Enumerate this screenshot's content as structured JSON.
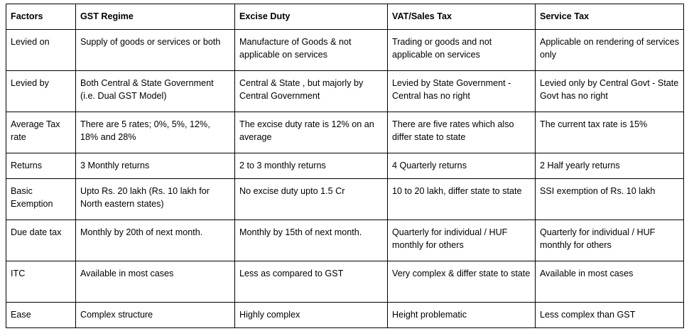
{
  "columns": [
    "Factors",
    "GST Regime",
    "Excise Duty",
    "VAT/Sales Tax",
    "Service Tax"
  ],
  "rows": [
    {
      "factor": "Levied on",
      "gst": "Supply of goods or services or both",
      "excise": "Manufacture of Goods & not applicable on services",
      "vat": "Trading or goods and not applicable on services",
      "service": "Applicable on rendering of services only"
    },
    {
      "factor": "Levied by",
      "gst": "Both Central & State Government (i.e. Dual GST Model)",
      "excise": "Central & State , but majorly by Central Government",
      "vat": "Levied by State Government - Central has no right",
      "service": "Levied only by Central Govt - State Govt has no right"
    },
    {
      "factor": "Average Tax rate",
      "gst": "There are 5 rates; 0%, 5%, 12%, 18% and 28%",
      "excise": "The excise duty rate is 12% on an average",
      "vat": "There are five rates which also differ state to state",
      "service": "The current tax rate is 15%"
    },
    {
      "factor": "Returns",
      "gst": "3 Monthly returns",
      "excise": "2 to 3 monthly returns",
      "vat": "4 Quarterly returns",
      "service": "2 Half yearly returns"
    },
    {
      "factor": "Basic Exemption",
      "gst": "Upto Rs. 20 lakh (Rs. 10 lakh for North eastern states)",
      "excise": "No excise duty upto 1.5 Cr",
      "vat": "10 to 20 lakh, differ state to state",
      "service": "SSI exemption of Rs. 10 lakh"
    },
    {
      "factor": "Due date tax",
      "gst": "Monthly by 20th of next month.",
      "excise": "Monthly by 15th of next month.",
      "vat": "Quarterly for individual / HUF monthly for others",
      "service": "Quarterly for individual / HUF monthly for others"
    },
    {
      "factor": "ITC",
      "gst": "Available in most cases",
      "excise": "Less as compared to GST",
      "vat": "Very complex & differ state to state",
      "service": "Available in most cases"
    },
    {
      "factor": "Ease",
      "gst": "Complex structure",
      "excise": "Highly complex",
      "vat": "Height problematic",
      "service": "Less complex than GST"
    }
  ]
}
